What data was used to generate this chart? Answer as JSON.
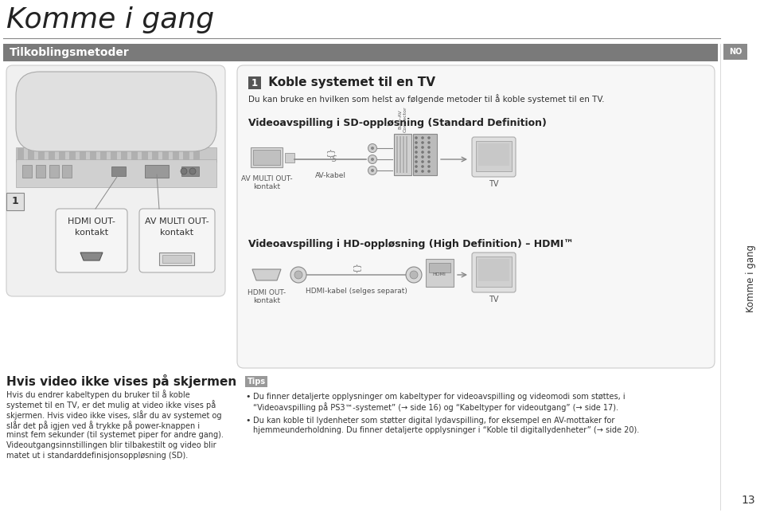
{
  "bg_color": "#ffffff",
  "title": "Komme i gang",
  "title_fontsize": 26,
  "title_color": "#222222",
  "title_line_color": "#888888",
  "section_bar_color": "#7a7a7a",
  "section_bar_text": "Tilkoblingsmetoder",
  "section_bar_text_color": "#ffffff",
  "section_bar_fontsize": 10,
  "koble_title_num": "1",
  "koble_title_rest": " Koble systemet til en TV",
  "koble_subtitle": "Du kan bruke en hvilken som helst av følgende metoder til å koble systemet til en TV.",
  "sd_title": "Videoavspilling i SD-oppløsning (Standard Definition)",
  "hd_title": "Videoavspilling i HD-oppløsning (High Definition) – HDMI™",
  "hdmi_label": "HDMI OUT-\nkontakt",
  "av_multi_label": "AV MULTI OUT-\nkontakt",
  "av_kabel_label": "AV-kabel",
  "hdmi_kabel_label": "HDMI-kabel (selges separat)",
  "tv_label": "TV",
  "hvis_title": "Hvis video ikke vises på skjermen",
  "hvis_body1": "Hvis du endrer kabeltypen du bruker til å koble",
  "hvis_body2": "systemet til en TV, er det mulig at video ikke vises på",
  "hvis_body3": "skjermen. Hvis video ikke vises, slår du av systemet og",
  "hvis_body4": "slår det på igjen ved å trykke på power-knappen i",
  "hvis_body5": "minst fem sekunder (til systemet piper for andre gang).",
  "hvis_body6": "Videoutgangsinnstillingen blir tilbakestilt og video blir",
  "hvis_body7": "matet ut i standarddefinisjonsoppløsning (SD).",
  "tips_label": "Tips",
  "tips_text1a": "Du finner detaljerte opplysninger om kabeltyper for videoavspilling og videomodi som støttes, i",
  "tips_text1b": "“Videoavspilling på PS3™-systemet” (→ side 16) og “Kabeltyper for videoutgang” (→ side 17).",
  "tips_text2a": "Du kan koble til lydenheter som støtter digital lydavspilling, for eksempel en AV-mottaker for",
  "tips_text2b": "hjemmeunderholdning. Du finner detaljerte opplysninger i “Koble til digitallydenheter” (→ side 20).",
  "no_label": "NO",
  "side_text": "Komme i gang",
  "page_number": "13"
}
